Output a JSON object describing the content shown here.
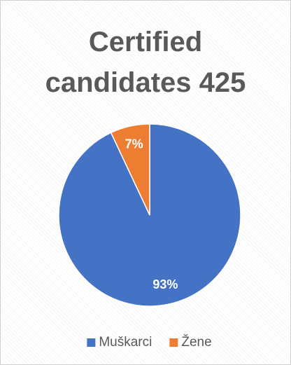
{
  "chart_data": {
    "type": "pie",
    "title": "Certified candidates 425",
    "categories": [
      "Muškarci",
      "Žene"
    ],
    "values": [
      93,
      7
    ],
    "value_labels": [
      "93%",
      "7%"
    ],
    "colors": [
      "#4472c4",
      "#ed7d31"
    ],
    "legend": "bottom"
  }
}
